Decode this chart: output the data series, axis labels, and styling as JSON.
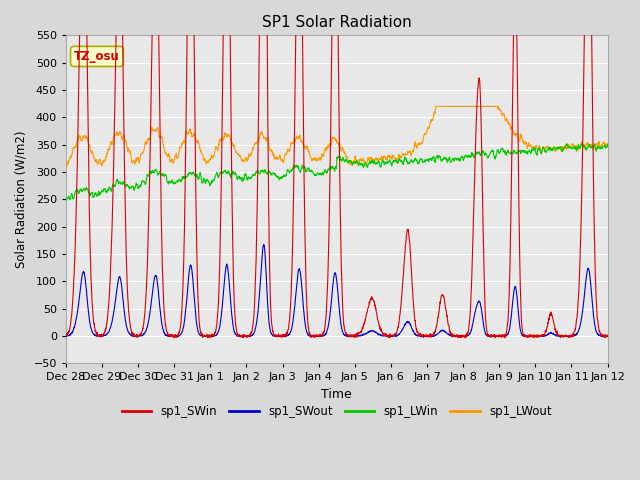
{
  "title": "SP1 Solar Radiation",
  "xlabel": "Time",
  "ylabel": "Solar Radiation (W/m2)",
  "ylim": [
    -50,
    550
  ],
  "bg_color": "#d8d8d8",
  "plot_bg_color": "#e8e8e8",
  "tz_label": "TZ_osu",
  "tz_box_color": "#ffffcc",
  "tz_text_color": "#cc0000",
  "colors": {
    "SWin": "#dd0000",
    "SWout": "#0000cc",
    "LWin": "#00cc00",
    "LWout": "#ff9900"
  },
  "legend_labels": [
    "sp1_SWin",
    "sp1_SWout",
    "sp1_LWin",
    "sp1_LWout"
  ],
  "xtick_labels": [
    "Dec 28",
    "Dec 29",
    "Dec 30",
    "Dec 31",
    "Jan 1",
    "Jan 2",
    "Jan 3",
    "Jan 4",
    "Jan 5",
    "Jan 6",
    "Jan 7",
    "Jan 8",
    "Jan 9",
    "Jan 10",
    "Jan 11",
    "Jan 12"
  ],
  "xtick_positions": [
    0,
    1,
    2,
    3,
    4,
    5,
    6,
    7,
    8,
    9,
    10,
    11,
    12,
    13,
    14,
    15
  ],
  "ytick_positions": [
    -50,
    0,
    50,
    100,
    150,
    200,
    250,
    300,
    350,
    400,
    450,
    500,
    550
  ]
}
